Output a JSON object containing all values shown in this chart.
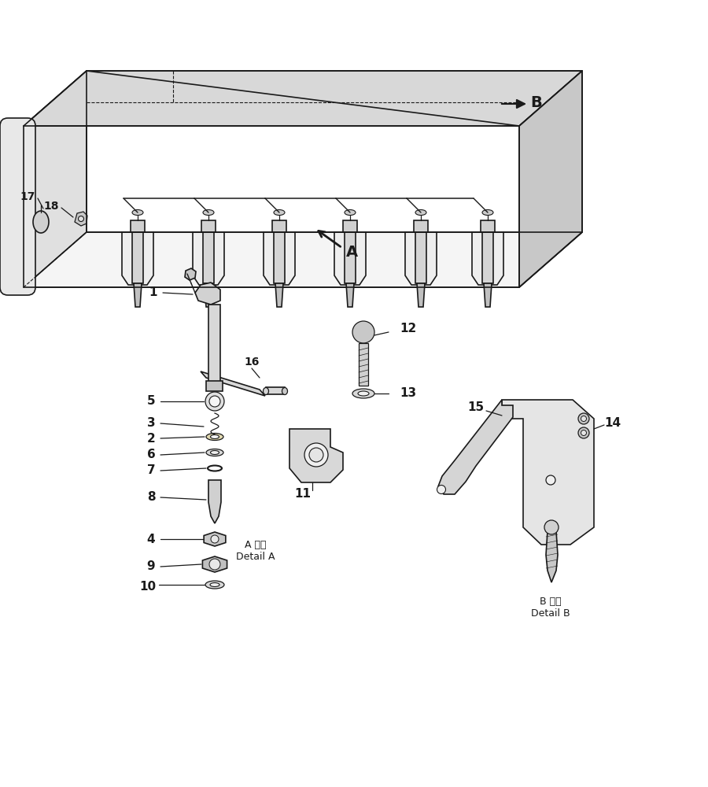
{
  "bg_color": "#ffffff",
  "lc": "#1a1a1a",
  "lw": 1.2,
  "detail_a_text": "A 詳細\nDetail A",
  "detail_b_text": "B 詳細\nDetail B",
  "label_A": "A",
  "label_B": "B",
  "figsize": [
    9.0,
    10.0
  ],
  "dpi": 100
}
